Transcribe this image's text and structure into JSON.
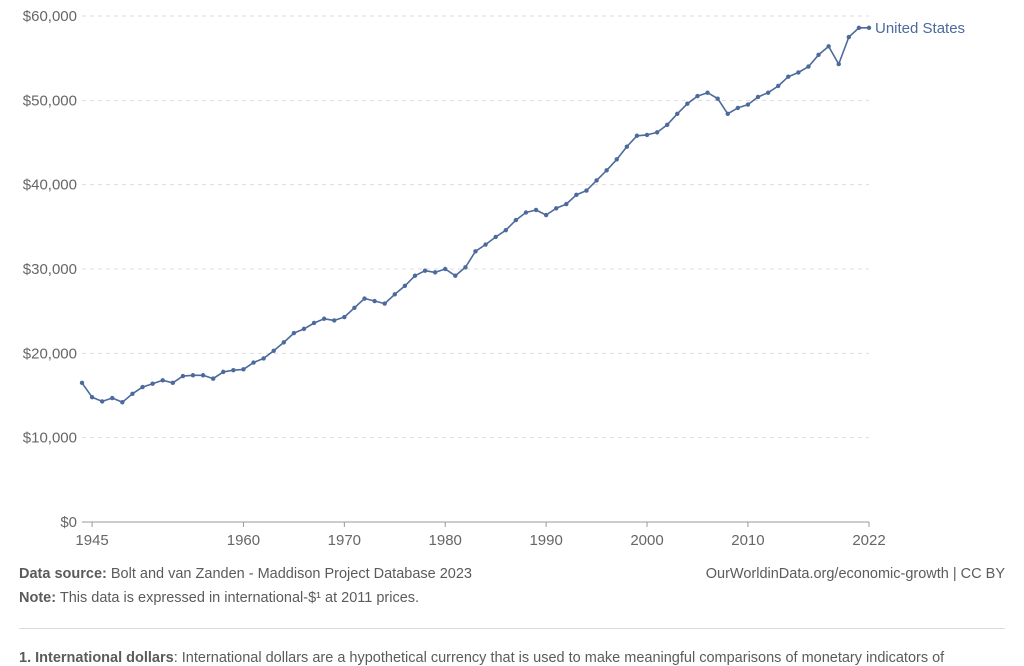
{
  "chart_data": {
    "type": "line",
    "title": "",
    "xlabel": "",
    "ylabel": "",
    "xlim": [
      1944,
      2022
    ],
    "ylim": [
      0,
      60000
    ],
    "grid": "horizontal-dashed",
    "x_ticks": [
      "1945",
      "1960",
      "1970",
      "1980",
      "1990",
      "2000",
      "2010",
      "2022"
    ],
    "y_ticks": [
      "$0",
      "$10,000",
      "$20,000",
      "$30,000",
      "$40,000",
      "$50,000",
      "$60,000"
    ],
    "y_tick_values": [
      0,
      10000,
      20000,
      30000,
      40000,
      50000,
      60000
    ],
    "series": [
      {
        "name": "United States",
        "color": "#4c6a9c",
        "x": [
          1944,
          1945,
          1946,
          1947,
          1948,
          1949,
          1950,
          1951,
          1952,
          1953,
          1954,
          1955,
          1956,
          1957,
          1958,
          1959,
          1960,
          1961,
          1962,
          1963,
          1964,
          1965,
          1966,
          1967,
          1968,
          1969,
          1970,
          1971,
          1972,
          1973,
          1974,
          1975,
          1976,
          1977,
          1978,
          1979,
          1980,
          1981,
          1982,
          1983,
          1984,
          1985,
          1986,
          1987,
          1988,
          1989,
          1990,
          1991,
          1992,
          1993,
          1994,
          1995,
          1996,
          1997,
          1998,
          1999,
          2000,
          2001,
          2002,
          2003,
          2004,
          2005,
          2006,
          2007,
          2008,
          2009,
          2010,
          2011,
          2012,
          2013,
          2014,
          2015,
          2016,
          2017,
          2018,
          2019,
          2020,
          2021,
          2022
        ],
        "values": [
          16500,
          14800,
          14300,
          14700,
          14200,
          15200,
          16000,
          16400,
          16800,
          16500,
          17300,
          17400,
          17400,
          17000,
          17800,
          18000,
          18100,
          18900,
          19400,
          20300,
          21300,
          22400,
          22900,
          23600,
          24100,
          23900,
          24300,
          25400,
          26500,
          26200,
          25900,
          27000,
          28000,
          29200,
          29800,
          29600,
          30000,
          29200,
          30200,
          32100,
          32900,
          33800,
          34600,
          35800,
          36700,
          37000,
          36400,
          37200,
          37700,
          38800,
          39300,
          40500,
          41700,
          43000,
          44500,
          45800,
          45900,
          46200,
          47100,
          48400,
          49600,
          50500,
          50900,
          50200,
          48400,
          49100,
          49500,
          50400,
          50900,
          51700,
          52800,
          53300,
          54000,
          55400,
          56400,
          54300,
          57500,
          58600,
          58600
        ]
      }
    ]
  },
  "footer": {
    "source_label": "Data source:",
    "source_text": "Bolt and van Zanden - Maddison Project Database 2023",
    "credit": "OurWorldinData.org/economic-growth | CC BY",
    "note_label": "Note:",
    "note_text": "This data is expressed in international-$¹ at 2011 prices.",
    "footnote_label": "1. International dollars",
    "footnote_text": ": International dollars are a hypothetical currency that is used to make meaningful comparisons of monetary indicators of"
  }
}
